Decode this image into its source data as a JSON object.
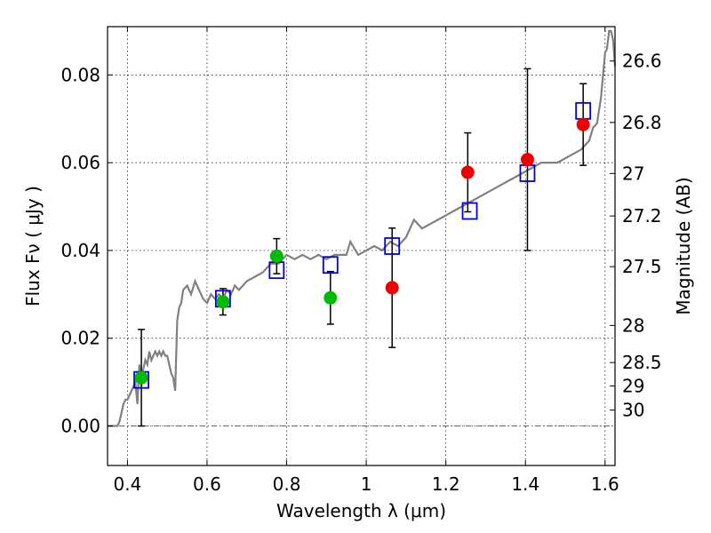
{
  "chart_data": {
    "type": "scatter",
    "xlabel": "Wavelength  λ (μm)",
    "ylabel": "Flux  Fν  ( μJy )",
    "y2label": "Magnitude (AB)",
    "xlim": [
      0.35,
      1.625
    ],
    "ylim": [
      -0.009,
      0.091
    ],
    "grid": true,
    "x_ticks": [
      0.4,
      0.6,
      0.8,
      1.0,
      1.2,
      1.4,
      1.6
    ],
    "x_tick_labels": [
      "0.4",
      "0.6",
      "0.8",
      "1",
      "1.2",
      "1.4",
      "1.6"
    ],
    "y_ticks": [
      0.0,
      0.02,
      0.04,
      0.06,
      0.08
    ],
    "y_tick_labels": [
      "0.00",
      "0.02",
      "0.04",
      "0.06",
      "0.08"
    ],
    "mag_ticks": [
      26.6,
      26.8,
      27,
      27.2,
      27.5,
      28,
      28.5,
      29,
      30
    ],
    "mag_tick_labels": [
      "26.6",
      "26.8",
      "27",
      "27.2",
      "27.5",
      "28",
      "28.5",
      "29",
      "30"
    ],
    "colors": {
      "model": "#808080",
      "green": "#00bb00",
      "red": "#ee0000",
      "blue": "#0000dd",
      "errorbar": "#000000"
    },
    "series": [
      {
        "kind": "model-spectrum",
        "x": [
          0.35,
          0.375,
          0.38,
          0.385,
          0.39,
          0.395,
          0.4,
          0.405,
          0.41,
          0.415,
          0.42,
          0.425,
          0.43,
          0.435,
          0.44,
          0.445,
          0.45,
          0.455,
          0.46,
          0.465,
          0.47,
          0.475,
          0.48,
          0.485,
          0.49,
          0.495,
          0.5,
          0.505,
          0.51,
          0.515,
          0.52,
          0.525,
          0.53,
          0.535,
          0.54,
          0.55,
          0.56,
          0.57,
          0.58,
          0.59,
          0.6,
          0.61,
          0.62,
          0.63,
          0.64,
          0.65,
          0.66,
          0.67,
          0.68,
          0.69,
          0.7,
          0.72,
          0.74,
          0.76,
          0.78,
          0.8,
          0.82,
          0.84,
          0.86,
          0.88,
          0.9,
          0.92,
          0.94,
          0.95,
          0.96,
          0.98,
          1.0,
          1.02,
          1.04,
          1.06,
          1.08,
          1.1,
          1.12,
          1.14,
          1.16,
          1.18,
          1.2,
          1.22,
          1.24,
          1.26,
          1.28,
          1.3,
          1.32,
          1.34,
          1.36,
          1.38,
          1.4,
          1.42,
          1.44,
          1.46,
          1.48,
          1.5,
          1.52,
          1.54,
          1.56,
          1.57,
          1.58,
          1.59,
          1.6,
          1.605,
          1.61,
          1.615,
          1.62,
          1.625
        ],
        "y": [
          0.0,
          0.0,
          0.001,
          0.003,
          0.005,
          0.006,
          0.006,
          0.007,
          0.008,
          0.009,
          0.01,
          0.005,
          0.014,
          0.009,
          0.013,
          0.015,
          0.014,
          0.017,
          0.015,
          0.016,
          0.017,
          0.016,
          0.017,
          0.016,
          0.017,
          0.016,
          0.016,
          0.014,
          0.012,
          0.011,
          0.008,
          0.024,
          0.027,
          0.028,
          0.031,
          0.032,
          0.03,
          0.033,
          0.031,
          0.029,
          0.028,
          0.03,
          0.029,
          0.03,
          0.029,
          0.031,
          0.03,
          0.032,
          0.031,
          0.032,
          0.033,
          0.034,
          0.035,
          0.037,
          0.037,
          0.039,
          0.038,
          0.039,
          0.038,
          0.039,
          0.038,
          0.039,
          0.039,
          0.039,
          0.042,
          0.039,
          0.04,
          0.041,
          0.04,
          0.042,
          0.041,
          0.043,
          0.047,
          0.045,
          0.046,
          0.047,
          0.048,
          0.049,
          0.05,
          0.051,
          0.052,
          0.053,
          0.054,
          0.055,
          0.056,
          0.057,
          0.058,
          0.059,
          0.06,
          0.06,
          0.06,
          0.061,
          0.062,
          0.063,
          0.065,
          0.068,
          0.069,
          0.075,
          0.085,
          0.086,
          0.09,
          0.09,
          0.088,
          0.082
        ]
      },
      {
        "kind": "observed-green",
        "points": [
          {
            "x": 0.435,
            "y": 0.011,
            "err": 0.011
          },
          {
            "x": 0.64,
            "y": 0.0283,
            "err": 0.003
          },
          {
            "x": 0.775,
            "y": 0.0387,
            "err": 0.004
          },
          {
            "x": 0.91,
            "y": 0.0292,
            "err": 0.006
          }
        ]
      },
      {
        "kind": "observed-red",
        "points": [
          {
            "x": 1.065,
            "y": 0.0315,
            "err": 0.0136
          },
          {
            "x": 1.255,
            "y": 0.0578,
            "err": 0.009
          },
          {
            "x": 1.405,
            "y": 0.0607,
            "err": 0.0207
          },
          {
            "x": 1.545,
            "y": 0.0687,
            "err": 0.0093
          }
        ]
      },
      {
        "kind": "model-photometry-squares",
        "points": [
          {
            "x": 0.435,
            "y": 0.0105
          },
          {
            "x": 0.64,
            "y": 0.029
          },
          {
            "x": 0.775,
            "y": 0.0355
          },
          {
            "x": 0.91,
            "y": 0.0367
          },
          {
            "x": 1.065,
            "y": 0.041
          },
          {
            "x": 1.26,
            "y": 0.049
          },
          {
            "x": 1.405,
            "y": 0.0576
          },
          {
            "x": 1.545,
            "y": 0.0718
          }
        ]
      }
    ]
  }
}
